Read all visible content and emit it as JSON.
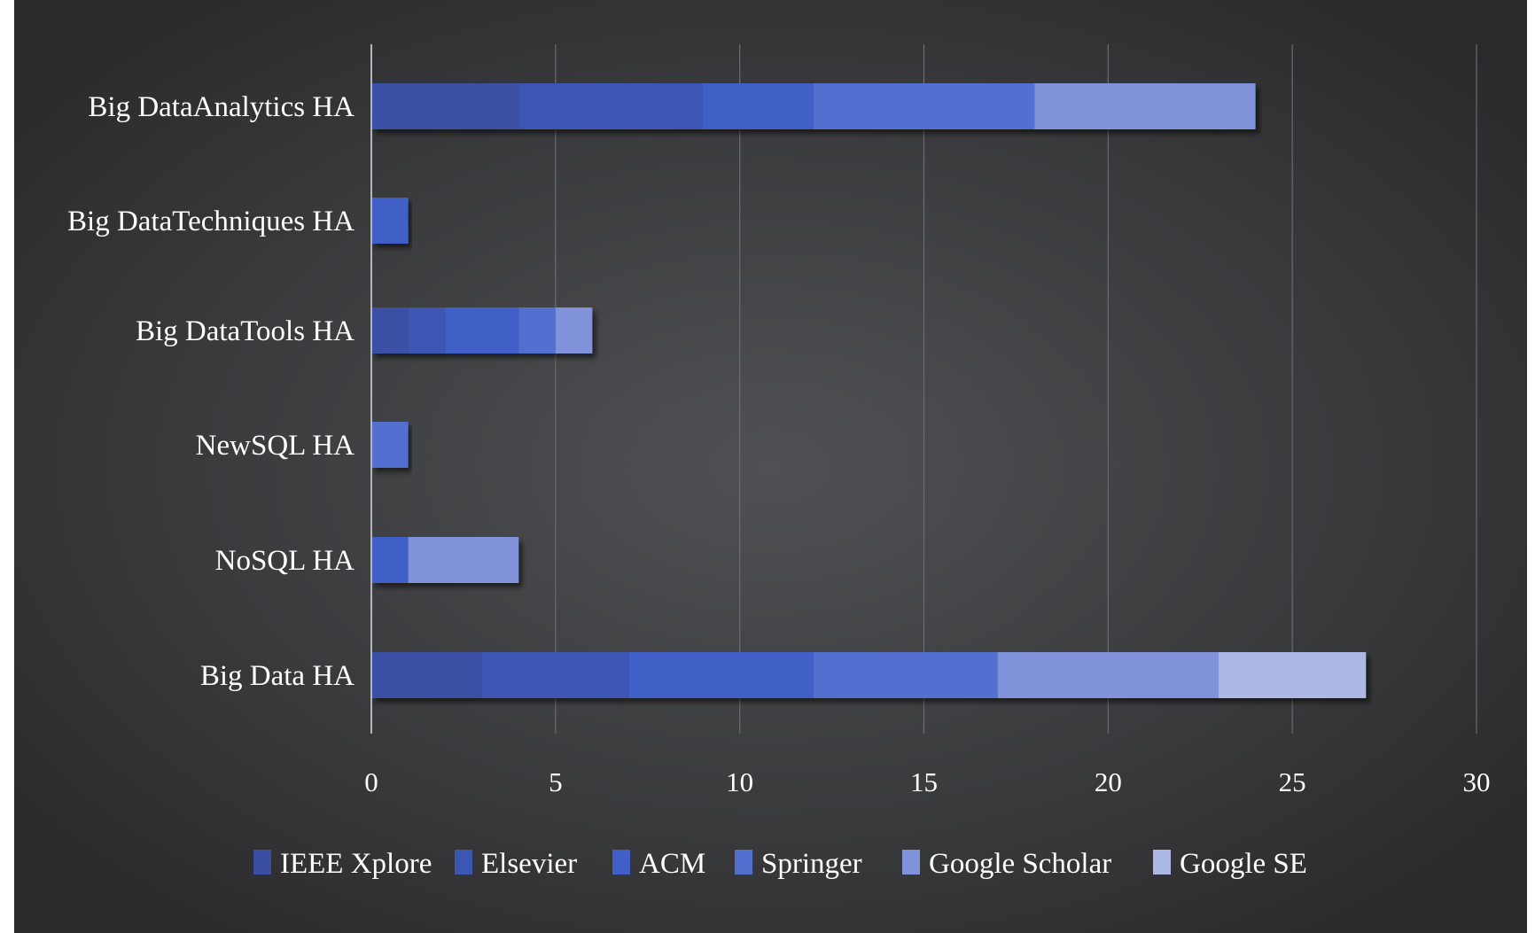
{
  "chart_data": {
    "type": "bar",
    "orientation": "horizontal",
    "stacked": true,
    "categories": [
      "Big DataAnalytics HA",
      "Big DataTechniques HA",
      "Big DataTools HA",
      "NewSQL HA",
      "NoSQL HA",
      "Big Data HA"
    ],
    "series": [
      {
        "name": "IEEE Xplore",
        "color": "#3a4fa4",
        "values": [
          4,
          0,
          1,
          0,
          0,
          3
        ]
      },
      {
        "name": "Elsevier",
        "color": "#3c56b4",
        "values": [
          5,
          0,
          1,
          0,
          0,
          4
        ]
      },
      {
        "name": "ACM",
        "color": "#4060c8",
        "values": [
          3,
          1,
          2,
          0,
          1,
          5
        ]
      },
      {
        "name": "Springer",
        "color": "#5370d0",
        "values": [
          6,
          0,
          1,
          1,
          0,
          5
        ]
      },
      {
        "name": "Google Scholar",
        "color": "#7f92da",
        "values": [
          6,
          0,
          1,
          0,
          3,
          6
        ]
      },
      {
        "name": "Google SE",
        "color": "#aeb8e6",
        "values": [
          0,
          0,
          0,
          0,
          0,
          4
        ]
      }
    ],
    "xlim": [
      0,
      30
    ],
    "xticks": [
      "0",
      "5",
      "10",
      "15",
      "20",
      "25",
      "30"
    ],
    "grid": true,
    "legend": "bottom",
    "background": "#3a3b3e"
  }
}
